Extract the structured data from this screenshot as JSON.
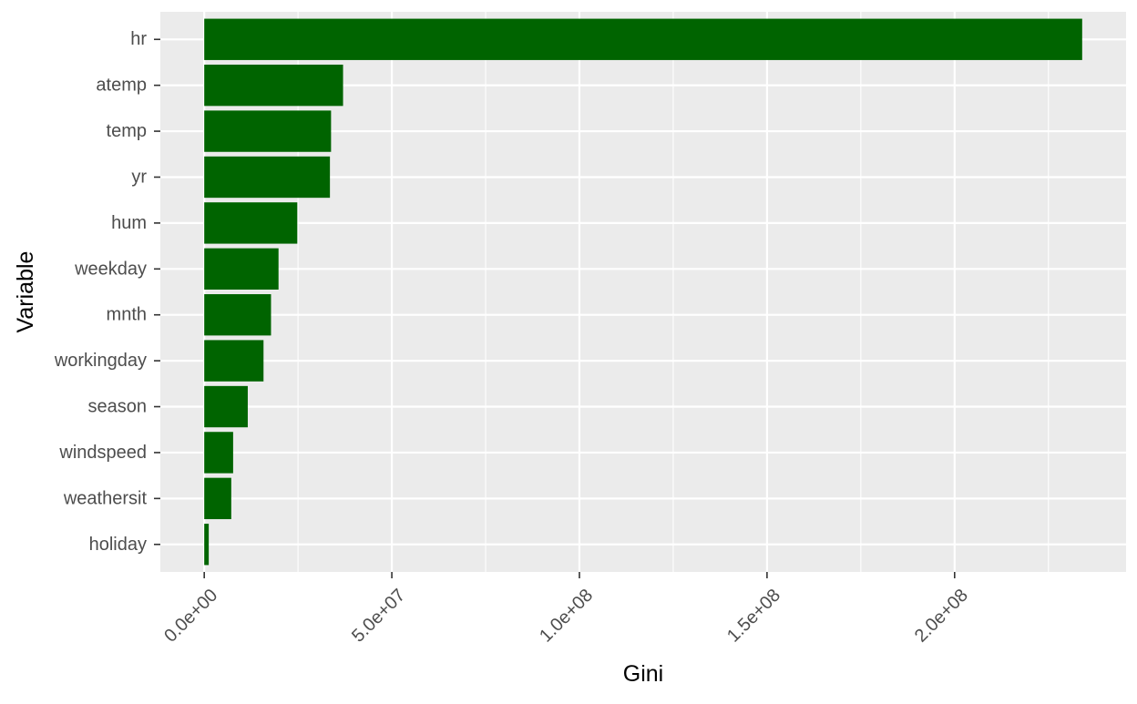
{
  "chart_data": {
    "type": "bar",
    "orientation": "horizontal",
    "xlabel": "Gini",
    "ylabel": "Variable",
    "categories": [
      "hr",
      "atemp",
      "temp",
      "yr",
      "hum",
      "weekday",
      "mnth",
      "workingday",
      "season",
      "windspeed",
      "weathersit",
      "holiday"
    ],
    "values": [
      234000000,
      37000000,
      33800000,
      33500000,
      24800000,
      19800000,
      17800000,
      15800000,
      11600000,
      7700000,
      7200000,
      1200000
    ],
    "xlim": [
      -11700000,
      245700000
    ],
    "x_ticks": [
      0,
      50000000,
      100000000,
      150000000,
      200000000
    ],
    "x_tick_labels": [
      "0.0e+00",
      "5.0e+07",
      "1.0e+08",
      "1.5e+08",
      "2.0e+08"
    ],
    "grid": true,
    "legend": "none",
    "colors": {
      "bar": "#006400",
      "panel": "#ebebeb",
      "grid_major": "#ffffff"
    }
  }
}
